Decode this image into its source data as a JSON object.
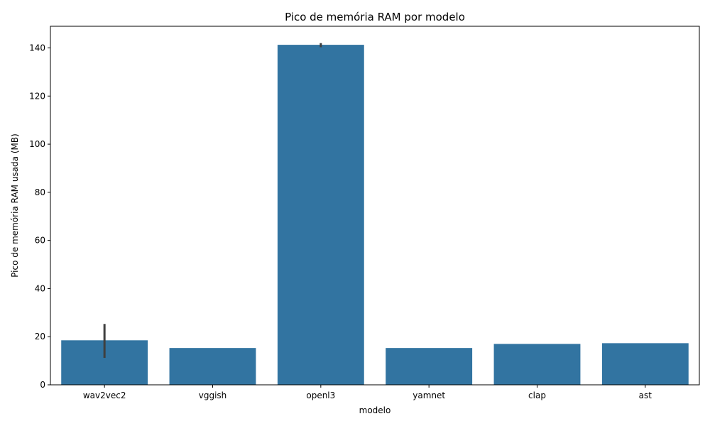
{
  "chart_data": {
    "type": "bar",
    "title": "Pico de memória RAM por modelo",
    "xlabel": "modelo",
    "ylabel": "Pico de memória RAM usada (MB)",
    "categories": [
      "wav2vec2",
      "vggish",
      "openl3",
      "yamnet",
      "clap",
      "ast"
    ],
    "values": [
      18.5,
      15.3,
      141.3,
      15.3,
      17.0,
      17.3
    ],
    "error_bars": [
      {
        "low": 11.2,
        "high": 25.3
      },
      null,
      {
        "low": 140.3,
        "high": 142.0
      },
      null,
      null,
      null
    ],
    "ylim": [
      0,
      149
    ],
    "yticks": [
      0,
      20,
      40,
      60,
      80,
      100,
      120,
      140
    ],
    "grid": false,
    "legend": "none",
    "colors": {
      "bar": "#3274a1",
      "error_bar": "#3f3f3f",
      "axis": "#000000"
    }
  }
}
